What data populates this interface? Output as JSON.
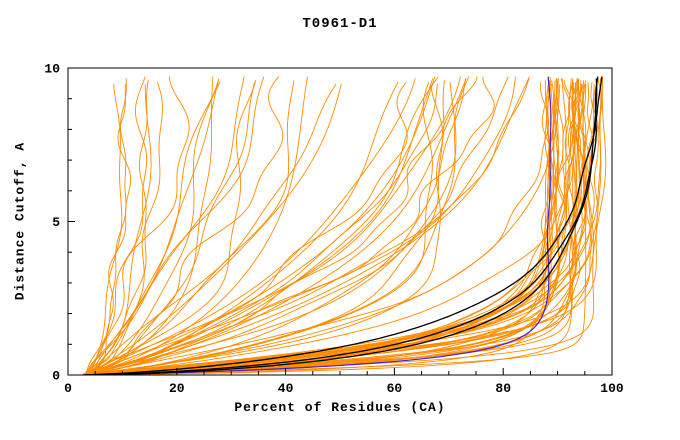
{
  "chart_data": {
    "type": "line",
    "title": "T0961-D1",
    "xlabel": "Percent of Residues (CA)",
    "ylabel": "Distance Cutoff, A",
    "xlim": [
      0,
      100
    ],
    "ylim": [
      0,
      10
    ],
    "x_major_ticks": [
      0,
      20,
      40,
      60,
      80,
      100
    ],
    "x_minor_step": 5,
    "y_major_ticks": [
      0,
      5,
      10
    ],
    "y_minor_step": 1,
    "grid": false,
    "legend": "none",
    "description": "CASP-style GDT plot for target T0961-D1: ~90 orange model curves (percent of CA residues under each distance cutoff), three black highlighted curves along the lower-right envelope reaching ~97-99% and one blue-violet curve rising vertically near 88%.",
    "colors": {
      "model_curves": "#FF8C00",
      "highlight_black": "#000000",
      "highlight_blue": "#4422CC",
      "frame": "#000000",
      "background": "#FFFFFF"
    },
    "series_groups": [
      {
        "name": "orange-model-curve-good",
        "color": "#FF8C00",
        "count": 42,
        "seed": 11,
        "width": 0.9,
        "x0": [
          2.5,
          4.5
        ],
        "xf": [
          88,
          99.4
        ],
        "c": [
          0.22,
          1.3
        ],
        "p": [
          0.75,
          1.3
        ],
        "amp": [
          0.2,
          1.0
        ],
        "freq": [
          0.4,
          1.8
        ],
        "phase": [
          0,
          6.283
        ],
        "ymax": [
          9.5,
          9.78
        ]
      },
      {
        "name": "orange-model-curve-mid",
        "color": "#FF8C00",
        "count": 20,
        "seed": 22,
        "width": 0.9,
        "x0": [
          2.5,
          4.5
        ],
        "xf": [
          68,
          95
        ],
        "c": [
          1.2,
          4.8
        ],
        "p": [
          0.8,
          1.2
        ],
        "amp": [
          0.5,
          2.0
        ],
        "freq": [
          0.3,
          1.5
        ],
        "phase": [
          0,
          6.283
        ],
        "ymax": [
          9.5,
          9.78
        ]
      },
      {
        "name": "orange-model-curve-poor",
        "color": "#FF8C00",
        "count": 16,
        "seed": 33,
        "width": 0.9,
        "x0": [
          2.5,
          4.5
        ],
        "xf": [
          22,
          78
        ],
        "c": [
          2.5,
          9.5
        ],
        "p": [
          0.9,
          1.1
        ],
        "amp": [
          0.6,
          2.6
        ],
        "freq": [
          0.3,
          1.2
        ],
        "phase": [
          0,
          6.283
        ],
        "ymax": [
          9.5,
          9.78
        ]
      },
      {
        "name": "orange-model-curve-steep-left",
        "color": "#FF8C00",
        "count": 9,
        "seed": 44,
        "width": 0.9,
        "x0": [
          2.5,
          4.5
        ],
        "xf": [
          8,
          34
        ],
        "c": [
          0.9,
          3.2
        ],
        "p": [
          0.85,
          1.15
        ],
        "amp": [
          0.4,
          1.5
        ],
        "freq": [
          0.4,
          1.6
        ],
        "phase": [
          0,
          6.283
        ],
        "ymax": [
          9.5,
          9.78
        ]
      }
    ],
    "highlight_series": [
      {
        "name": "blue-curve",
        "color": "#4422CC",
        "width": 1.2,
        "x0": 3,
        "xf": 88.5,
        "c": 0.4,
        "p": 0.9,
        "amp": 0.25,
        "freq": 1.0,
        "phase": 0.3,
        "ymax": 9.72
      },
      {
        "name": "black-curve-1",
        "color": "#000000",
        "width": 1.3,
        "x0": 3,
        "xf": 98.6,
        "c": 1.15,
        "p": 0.72,
        "amp": 0.35,
        "freq": 1.1,
        "phase": 0.5,
        "ymax": 9.74
      },
      {
        "name": "black-curve-2",
        "color": "#000000",
        "width": 1.3,
        "x0": 3.2,
        "xf": 97.6,
        "c": 0.95,
        "p": 0.7,
        "amp": 0.45,
        "freq": 0.8,
        "phase": 1.9,
        "ymax": 9.7
      },
      {
        "name": "black-curve-3",
        "color": "#000000",
        "width": 1.3,
        "x0": 2.8,
        "xf": 99.1,
        "c": 1.5,
        "p": 0.78,
        "amp": 0.3,
        "freq": 1.2,
        "phase": 3.1,
        "ymax": 9.76
      }
    ]
  }
}
